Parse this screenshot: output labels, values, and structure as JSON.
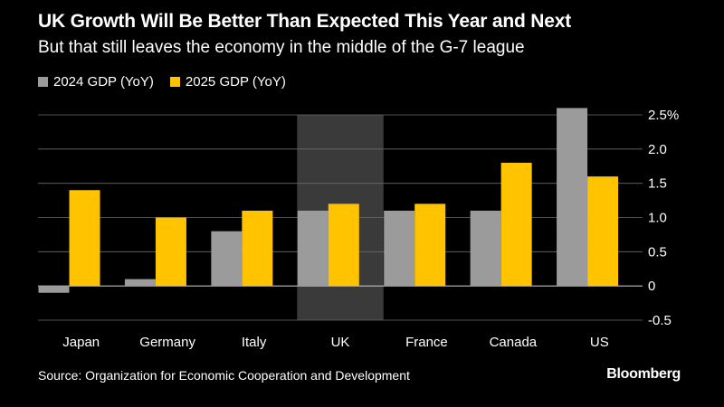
{
  "chart_data": {
    "type": "bar",
    "title": "UK Growth Will Be Better Than Expected This Year and Next",
    "subtitle": "But that still leaves the economy in the middle of the G-7 league",
    "categories": [
      "Japan",
      "Germany",
      "Italy",
      "UK",
      "France",
      "Canada",
      "US"
    ],
    "series": [
      {
        "name": "2024 GDP (YoY)",
        "color": "#9b9b9b",
        "values": [
          -0.1,
          0.1,
          0.8,
          1.1,
          1.1,
          1.1,
          2.6
        ]
      },
      {
        "name": "2025 GDP (YoY)",
        "color": "#ffc300",
        "values": [
          1.4,
          1.0,
          1.1,
          1.2,
          1.2,
          1.8,
          1.6
        ]
      }
    ],
    "highlight_category": "UK",
    "highlight_color": "#3a3a3a",
    "ylim": [
      -0.5,
      2.5
    ],
    "yticks": [
      {
        "value": 2.5,
        "label": "2.5%"
      },
      {
        "value": 2.0,
        "label": "2.0"
      },
      {
        "value": 1.5,
        "label": "1.5"
      },
      {
        "value": 1.0,
        "label": "1.0"
      },
      {
        "value": 0.5,
        "label": "0.5"
      },
      {
        "value": 0,
        "label": "0"
      },
      {
        "value": -0.5,
        "label": "-0.5"
      }
    ],
    "xlabel": "",
    "ylabel": "",
    "grid": true,
    "legend_position": "top-left",
    "source": "Source: Organization for Economic Cooperation and Development",
    "brand": "Bloomberg"
  }
}
